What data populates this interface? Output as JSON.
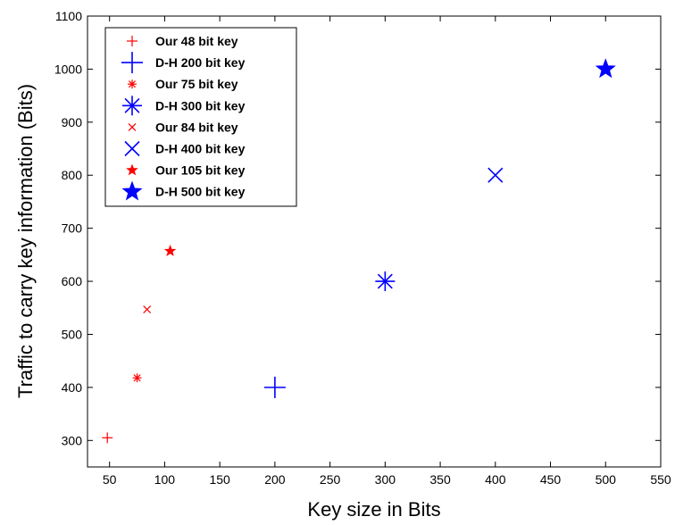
{
  "chart_data": {
    "type": "scatter",
    "xlabel": "Key size in Bits",
    "ylabel": "Traffic to carry key information (Bits)",
    "xlim": [
      30,
      550
    ],
    "ylim": [
      250,
      1100
    ],
    "xticks": [
      "50",
      "100",
      "150",
      "200",
      "250",
      "300",
      "350",
      "400",
      "450",
      "500",
      "550"
    ],
    "yticks": [
      "300",
      "400",
      "500",
      "600",
      "700",
      "800",
      "900",
      "1000",
      "1100"
    ],
    "grid": false,
    "legend_position": "top-left",
    "series": [
      {
        "name": "Our 48 bit key",
        "marker": "plus",
        "size": "small",
        "color": "#ff0000",
        "x": 48,
        "y": 305
      },
      {
        "name": "D-H 200 bit key",
        "marker": "plus",
        "size": "large",
        "color": "#0000ff",
        "x": 200,
        "y": 400
      },
      {
        "name": "Our 75 bit key",
        "marker": "asterisk",
        "size": "small",
        "color": "#ff0000",
        "x": 75,
        "y": 418
      },
      {
        "name": "D-H 300 bit key",
        "marker": "asterisk",
        "size": "large",
        "color": "#0000ff",
        "x": 300,
        "y": 600
      },
      {
        "name": "Our 84 bit key",
        "marker": "x",
        "size": "small",
        "color": "#ff0000",
        "x": 84,
        "y": 547
      },
      {
        "name": "D-H 400 bit key",
        "marker": "x",
        "size": "large",
        "color": "#0000ff",
        "x": 400,
        "y": 800
      },
      {
        "name": "Our 105 bit key",
        "marker": "star",
        "size": "small",
        "color": "#ff0000",
        "x": 105,
        "y": 657
      },
      {
        "name": "D-H 500 bit key",
        "marker": "star",
        "size": "large",
        "color": "#0000ff",
        "x": 500,
        "y": 1000
      }
    ]
  }
}
